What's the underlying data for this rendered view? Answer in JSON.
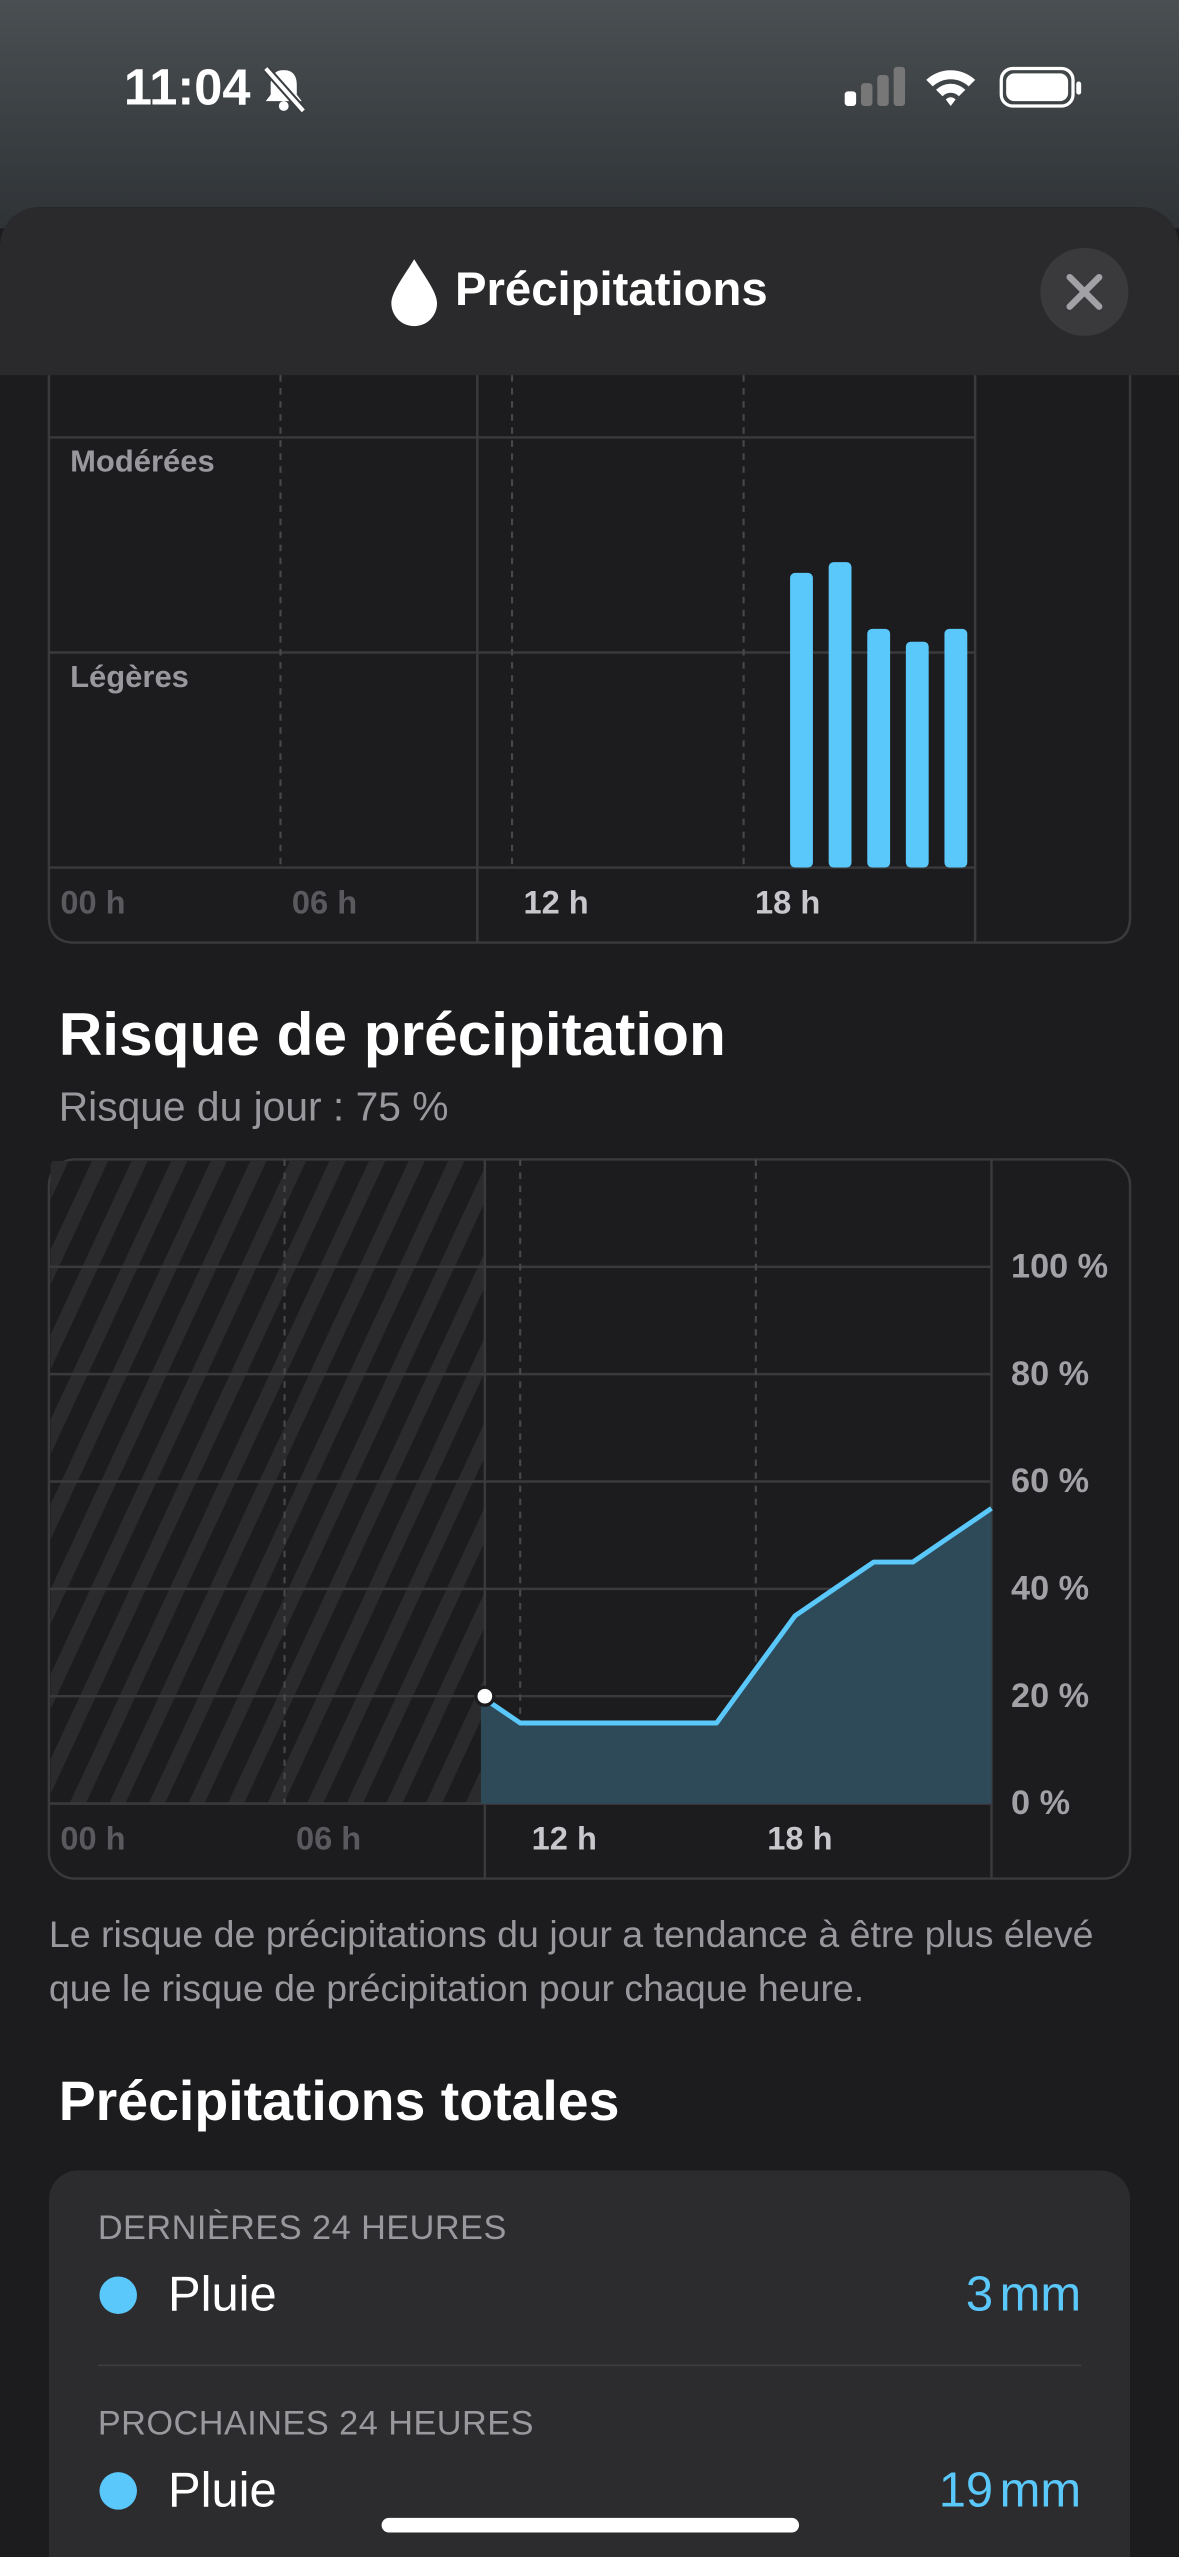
{
  "status": {
    "time": "11:04"
  },
  "header": {
    "title": "Précipitations"
  },
  "intensity_chart": {
    "type": "bar",
    "x": [
      19,
      20,
      21,
      22,
      23
    ],
    "values": [
      1.37,
      1.42,
      1.11,
      1.05,
      1.11
    ],
    "color": "#5ac8fa",
    "xlim": [
      0,
      24
    ],
    "xticks": [
      {
        "value": 0,
        "label": "00 h"
      },
      {
        "value": 6,
        "label": "06 h"
      },
      {
        "value": 12,
        "label": "12 h"
      },
      {
        "value": 18,
        "label": "18 h"
      }
    ],
    "ylim": [
      0,
      2.29
    ],
    "yticks": [
      {
        "value": 1,
        "label": "Légères"
      },
      {
        "value": 2,
        "label": "Modérées"
      }
    ],
    "now": 11.1
  },
  "risk": {
    "title": "Risque de précipitation",
    "subtitle": "Risque du jour : 75 %",
    "chart": {
      "type": "line",
      "x": [
        11,
        12,
        13,
        14,
        15,
        16,
        17,
        18,
        19,
        20,
        21,
        22,
        23,
        24
      ],
      "values": [
        20,
        15,
        15,
        15,
        15,
        15,
        15,
        25,
        35,
        40,
        45,
        45,
        50,
        55
      ],
      "color": "#5ac8fa",
      "xlim": [
        0,
        24
      ],
      "xticks": [
        {
          "value": 0,
          "label": "00 h"
        },
        {
          "value": 6,
          "label": "06 h"
        },
        {
          "value": 12,
          "label": "12 h"
        },
        {
          "value": 18,
          "label": "18 h"
        }
      ],
      "ylim": [
        0,
        120
      ],
      "yticks": [
        {
          "value": 0,
          "label": "0 %"
        },
        {
          "value": 20,
          "label": "20 %"
        },
        {
          "value": 40,
          "label": "40 %"
        },
        {
          "value": 60,
          "label": "60 %"
        },
        {
          "value": 80,
          "label": "80 %"
        },
        {
          "value": 100,
          "label": "100 %"
        }
      ],
      "now": 11.1
    },
    "note": "Le risque de précipitations du jour a tendance à être plus élevé que le risque de précipitation pour chaque heure."
  },
  "totals": {
    "title": "Précipitations totales",
    "rows": [
      {
        "period": "DERNIÈRES 24 HEURES",
        "type": "Pluie",
        "value": 3,
        "unit": "mm"
      },
      {
        "period": "PROCHAINES 24 HEURES",
        "type": "Pluie",
        "value": 19,
        "unit": "mm"
      }
    ]
  }
}
